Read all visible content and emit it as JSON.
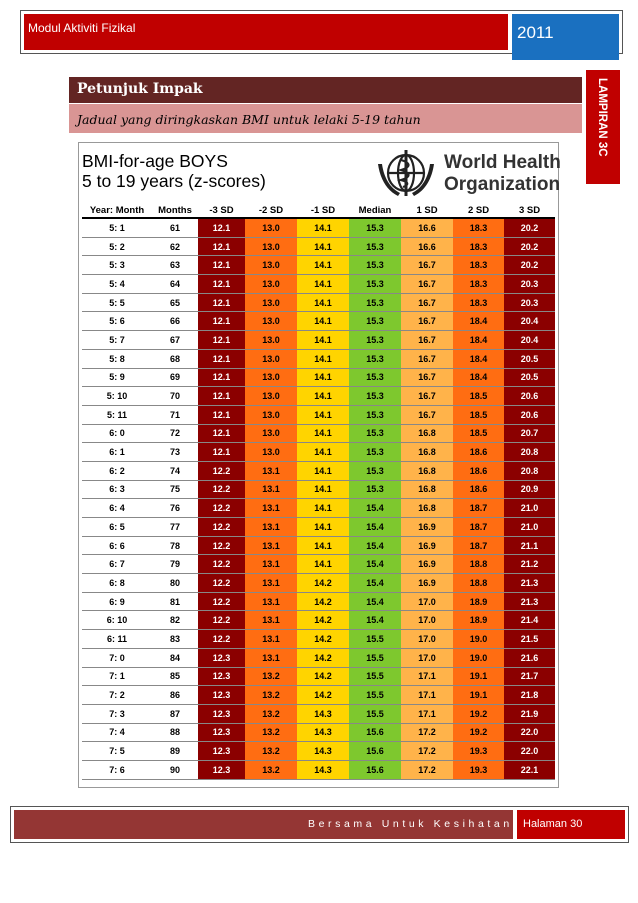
{
  "header": {
    "module_title": "Modul Aktiviti Fizikal",
    "year": "2011",
    "side_tab": "LAMPIRAN 3C"
  },
  "section": {
    "title": "Petunjuk Impak",
    "subtitle": "Jadual yang diringkaskan BMI untuk lelaki 5-19 tahun"
  },
  "chart": {
    "title_line1": "BMI-for-age BOYS",
    "title_line2": "5 to 19 years (z-scores)",
    "org_line1": "World Health",
    "org_line2": "Organization",
    "logo_icon": "who-emblem-icon",
    "colors": {
      "sd3": "#8b0000",
      "sd2": "#ff6d12",
      "sd1_neg": "#ffd400",
      "median": "#7ec82e",
      "sd1_pos": "#ffb34a"
    }
  },
  "table": {
    "headers": [
      "Year: Month",
      "Months",
      "-3 SD",
      "-2 SD",
      "-1 SD",
      "Median",
      "1 SD",
      "2 SD",
      "3 SD"
    ],
    "rows": [
      [
        "5: 1",
        "61",
        "12.1",
        "13.0",
        "14.1",
        "15.3",
        "16.6",
        "18.3",
        "20.2"
      ],
      [
        "5: 2",
        "62",
        "12.1",
        "13.0",
        "14.1",
        "15.3",
        "16.6",
        "18.3",
        "20.2"
      ],
      [
        "5: 3",
        "63",
        "12.1",
        "13.0",
        "14.1",
        "15.3",
        "16.7",
        "18.3",
        "20.2"
      ],
      [
        "5: 4",
        "64",
        "12.1",
        "13.0",
        "14.1",
        "15.3",
        "16.7",
        "18.3",
        "20.3"
      ],
      [
        "5: 5",
        "65",
        "12.1",
        "13.0",
        "14.1",
        "15.3",
        "16.7",
        "18.3",
        "20.3"
      ],
      [
        "5: 6",
        "66",
        "12.1",
        "13.0",
        "14.1",
        "15.3",
        "16.7",
        "18.4",
        "20.4"
      ],
      [
        "5: 7",
        "67",
        "12.1",
        "13.0",
        "14.1",
        "15.3",
        "16.7",
        "18.4",
        "20.4"
      ],
      [
        "5: 8",
        "68",
        "12.1",
        "13.0",
        "14.1",
        "15.3",
        "16.7",
        "18.4",
        "20.5"
      ],
      [
        "5: 9",
        "69",
        "12.1",
        "13.0",
        "14.1",
        "15.3",
        "16.7",
        "18.4",
        "20.5"
      ],
      [
        "5: 10",
        "70",
        "12.1",
        "13.0",
        "14.1",
        "15.3",
        "16.7",
        "18.5",
        "20.6"
      ],
      [
        "5: 11",
        "71",
        "12.1",
        "13.0",
        "14.1",
        "15.3",
        "16.7",
        "18.5",
        "20.6"
      ],
      [
        "6: 0",
        "72",
        "12.1",
        "13.0",
        "14.1",
        "15.3",
        "16.8",
        "18.5",
        "20.7"
      ],
      [
        "6: 1",
        "73",
        "12.1",
        "13.0",
        "14.1",
        "15.3",
        "16.8",
        "18.6",
        "20.8"
      ],
      [
        "6: 2",
        "74",
        "12.2",
        "13.1",
        "14.1",
        "15.3",
        "16.8",
        "18.6",
        "20.8"
      ],
      [
        "6: 3",
        "75",
        "12.2",
        "13.1",
        "14.1",
        "15.3",
        "16.8",
        "18.6",
        "20.9"
      ],
      [
        "6: 4",
        "76",
        "12.2",
        "13.1",
        "14.1",
        "15.4",
        "16.8",
        "18.7",
        "21.0"
      ],
      [
        "6: 5",
        "77",
        "12.2",
        "13.1",
        "14.1",
        "15.4",
        "16.9",
        "18.7",
        "21.0"
      ],
      [
        "6: 6",
        "78",
        "12.2",
        "13.1",
        "14.1",
        "15.4",
        "16.9",
        "18.7",
        "21.1"
      ],
      [
        "6: 7",
        "79",
        "12.2",
        "13.1",
        "14.1",
        "15.4",
        "16.9",
        "18.8",
        "21.2"
      ],
      [
        "6: 8",
        "80",
        "12.2",
        "13.1",
        "14.2",
        "15.4",
        "16.9",
        "18.8",
        "21.3"
      ],
      [
        "6: 9",
        "81",
        "12.2",
        "13.1",
        "14.2",
        "15.4",
        "17.0",
        "18.9",
        "21.3"
      ],
      [
        "6: 10",
        "82",
        "12.2",
        "13.1",
        "14.2",
        "15.4",
        "17.0",
        "18.9",
        "21.4"
      ],
      [
        "6: 11",
        "83",
        "12.2",
        "13.1",
        "14.2",
        "15.5",
        "17.0",
        "19.0",
        "21.5"
      ],
      [
        "7: 0",
        "84",
        "12.3",
        "13.1",
        "14.2",
        "15.5",
        "17.0",
        "19.0",
        "21.6"
      ],
      [
        "7: 1",
        "85",
        "12.3",
        "13.2",
        "14.2",
        "15.5",
        "17.1",
        "19.1",
        "21.7"
      ],
      [
        "7: 2",
        "86",
        "12.3",
        "13.2",
        "14.2",
        "15.5",
        "17.1",
        "19.1",
        "21.8"
      ],
      [
        "7: 3",
        "87",
        "12.3",
        "13.2",
        "14.3",
        "15.5",
        "17.1",
        "19.2",
        "21.9"
      ],
      [
        "7: 4",
        "88",
        "12.3",
        "13.2",
        "14.3",
        "15.6",
        "17.2",
        "19.2",
        "22.0"
      ],
      [
        "7: 5",
        "89",
        "12.3",
        "13.2",
        "14.3",
        "15.6",
        "17.2",
        "19.3",
        "22.0"
      ],
      [
        "7: 6",
        "90",
        "12.3",
        "13.2",
        "14.3",
        "15.6",
        "17.2",
        "19.3",
        "22.1"
      ]
    ]
  },
  "footer": {
    "tagline": "Bersama Untuk Kesihatan",
    "page": "Halaman 30"
  }
}
